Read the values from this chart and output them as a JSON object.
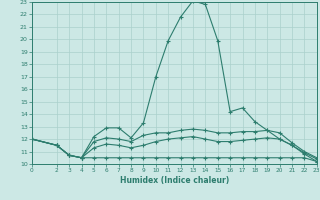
{
  "x_values": [
    0,
    2,
    3,
    4,
    5,
    6,
    7,
    8,
    9,
    10,
    11,
    12,
    13,
    14,
    15,
    16,
    17,
    18,
    19,
    20,
    21,
    22,
    23
  ],
  "line_max": [
    12,
    11.5,
    10.7,
    10.5,
    12.2,
    12.9,
    12.9,
    12.1,
    13.3,
    17.0,
    19.9,
    21.8,
    23.1,
    22.8,
    19.9,
    14.2,
    14.5,
    13.4,
    12.7,
    12.0,
    11.5,
    10.8,
    10.2
  ],
  "line_q3": [
    12,
    11.5,
    10.7,
    10.5,
    11.8,
    12.1,
    12.0,
    11.8,
    12.3,
    12.5,
    12.5,
    12.7,
    12.8,
    12.7,
    12.5,
    12.5,
    12.6,
    12.6,
    12.7,
    12.5,
    11.7,
    11.0,
    10.5
  ],
  "line_med": [
    12,
    11.5,
    10.7,
    10.5,
    11.3,
    11.6,
    11.5,
    11.3,
    11.5,
    11.8,
    12.0,
    12.1,
    12.2,
    12.0,
    11.8,
    11.8,
    11.9,
    12.0,
    12.1,
    12.0,
    11.5,
    10.9,
    10.4
  ],
  "line_min": [
    12,
    11.5,
    10.7,
    10.5,
    10.5,
    10.5,
    10.5,
    10.5,
    10.5,
    10.5,
    10.5,
    10.5,
    10.5,
    10.5,
    10.5,
    10.5,
    10.5,
    10.5,
    10.5,
    10.5,
    10.5,
    10.5,
    10.2
  ],
  "line_color": "#2d7d6e",
  "bg_color": "#cce8e5",
  "grid_color": "#aad0cc",
  "xlabel": "Humidex (Indice chaleur)",
  "xlim": [
    0,
    23
  ],
  "ylim": [
    10,
    23
  ],
  "yticks": [
    10,
    11,
    12,
    13,
    14,
    15,
    16,
    17,
    18,
    19,
    20,
    21,
    22,
    23
  ],
  "xticks": [
    0,
    2,
    3,
    4,
    5,
    6,
    7,
    8,
    9,
    10,
    11,
    12,
    13,
    14,
    15,
    16,
    17,
    18,
    19,
    20,
    21,
    22,
    23
  ]
}
